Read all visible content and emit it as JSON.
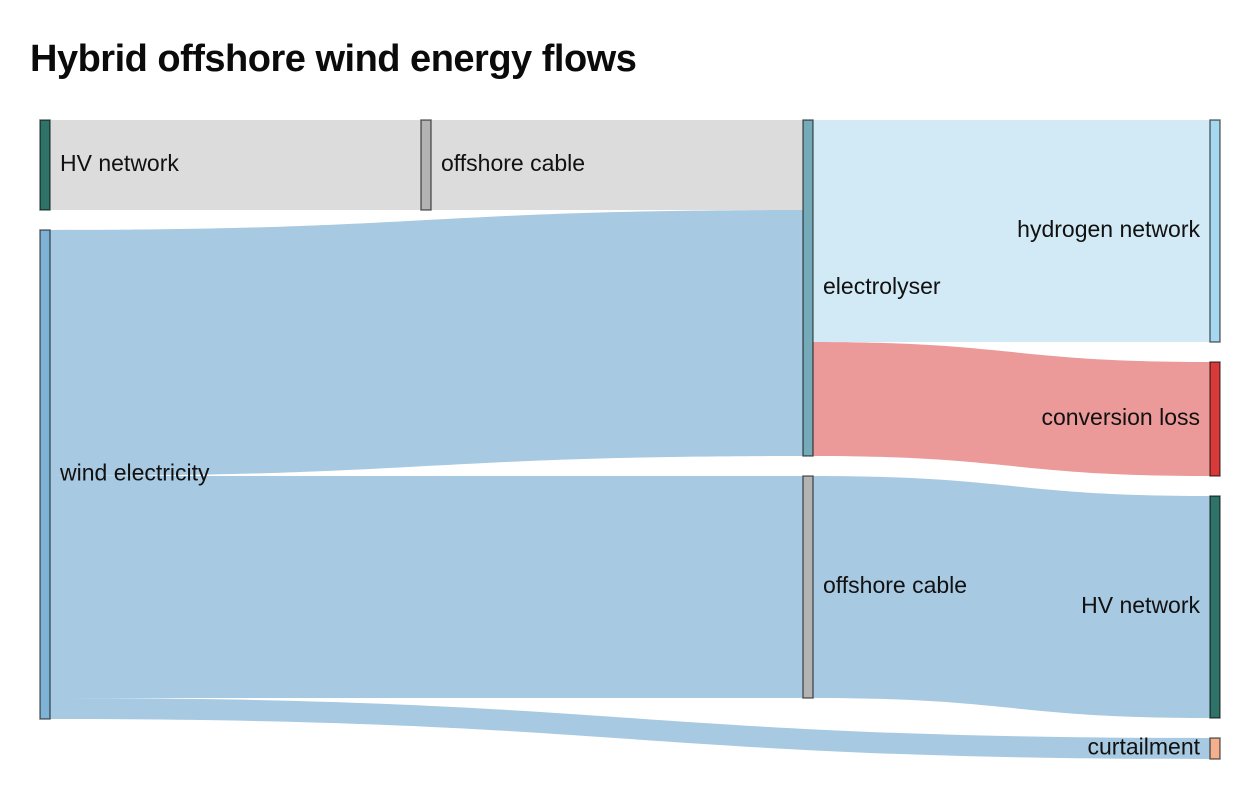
{
  "title": "Hybrid offshore wind energy flows",
  "colors": {
    "wind": "#7fb3d5",
    "electricity_link": "#a7c9e1",
    "grid": "#2e7268",
    "grid_link": "#dcdcdc",
    "cable": "#b3b3b3",
    "electrolyser": "#75aab9",
    "hydrogen": "#a6d8f0",
    "hydrogen_link": "#d1eaf5",
    "loss": "#d83a3a",
    "loss_link": "#eb9999",
    "curtailment": "#f2b08f"
  },
  "nodes": [
    {
      "id": "hv_in",
      "label": "HV network",
      "color_key": "grid"
    },
    {
      "id": "wind",
      "label": "wind electricity",
      "color_key": "wind"
    },
    {
      "id": "cable_in",
      "label": "offshore cable",
      "color_key": "cable"
    },
    {
      "id": "electrolyser",
      "label": "electrolyser",
      "color_key": "electrolyser"
    },
    {
      "id": "cable_out",
      "label": "offshore cable",
      "color_key": "cable"
    },
    {
      "id": "hydrogen",
      "label": "hydrogen network",
      "color_key": "hydrogen"
    },
    {
      "id": "loss",
      "label": "conversion loss",
      "color_key": "loss"
    },
    {
      "id": "hv_out",
      "label": "HV network",
      "color_key": "grid"
    },
    {
      "id": "curtail",
      "label": "curtailment",
      "color_key": "curtailment"
    }
  ],
  "links": [
    {
      "source": "hv_in",
      "target": "cable_in",
      "value": 9,
      "color_key": "grid_link"
    },
    {
      "source": "cable_in",
      "target": "electrolyser",
      "value": 9,
      "color_key": "grid_link"
    },
    {
      "source": "wind",
      "target": "electrolyser",
      "value": 24.6,
      "color_key": "electricity_link"
    },
    {
      "source": "wind",
      "target": "cable_out",
      "value": 22.2,
      "color_key": "electricity_link"
    },
    {
      "source": "wind",
      "target": "curtail",
      "value": 2.1,
      "color_key": "electricity_link"
    },
    {
      "source": "electrolyser",
      "target": "hydrogen",
      "value": 22.2,
      "color_key": "hydrogen_link"
    },
    {
      "source": "electrolyser",
      "target": "loss",
      "value": 11.4,
      "color_key": "loss_link"
    },
    {
      "source": "cable_out",
      "target": "hv_out",
      "value": 22.2,
      "color_key": "electricity_link"
    }
  ]
}
